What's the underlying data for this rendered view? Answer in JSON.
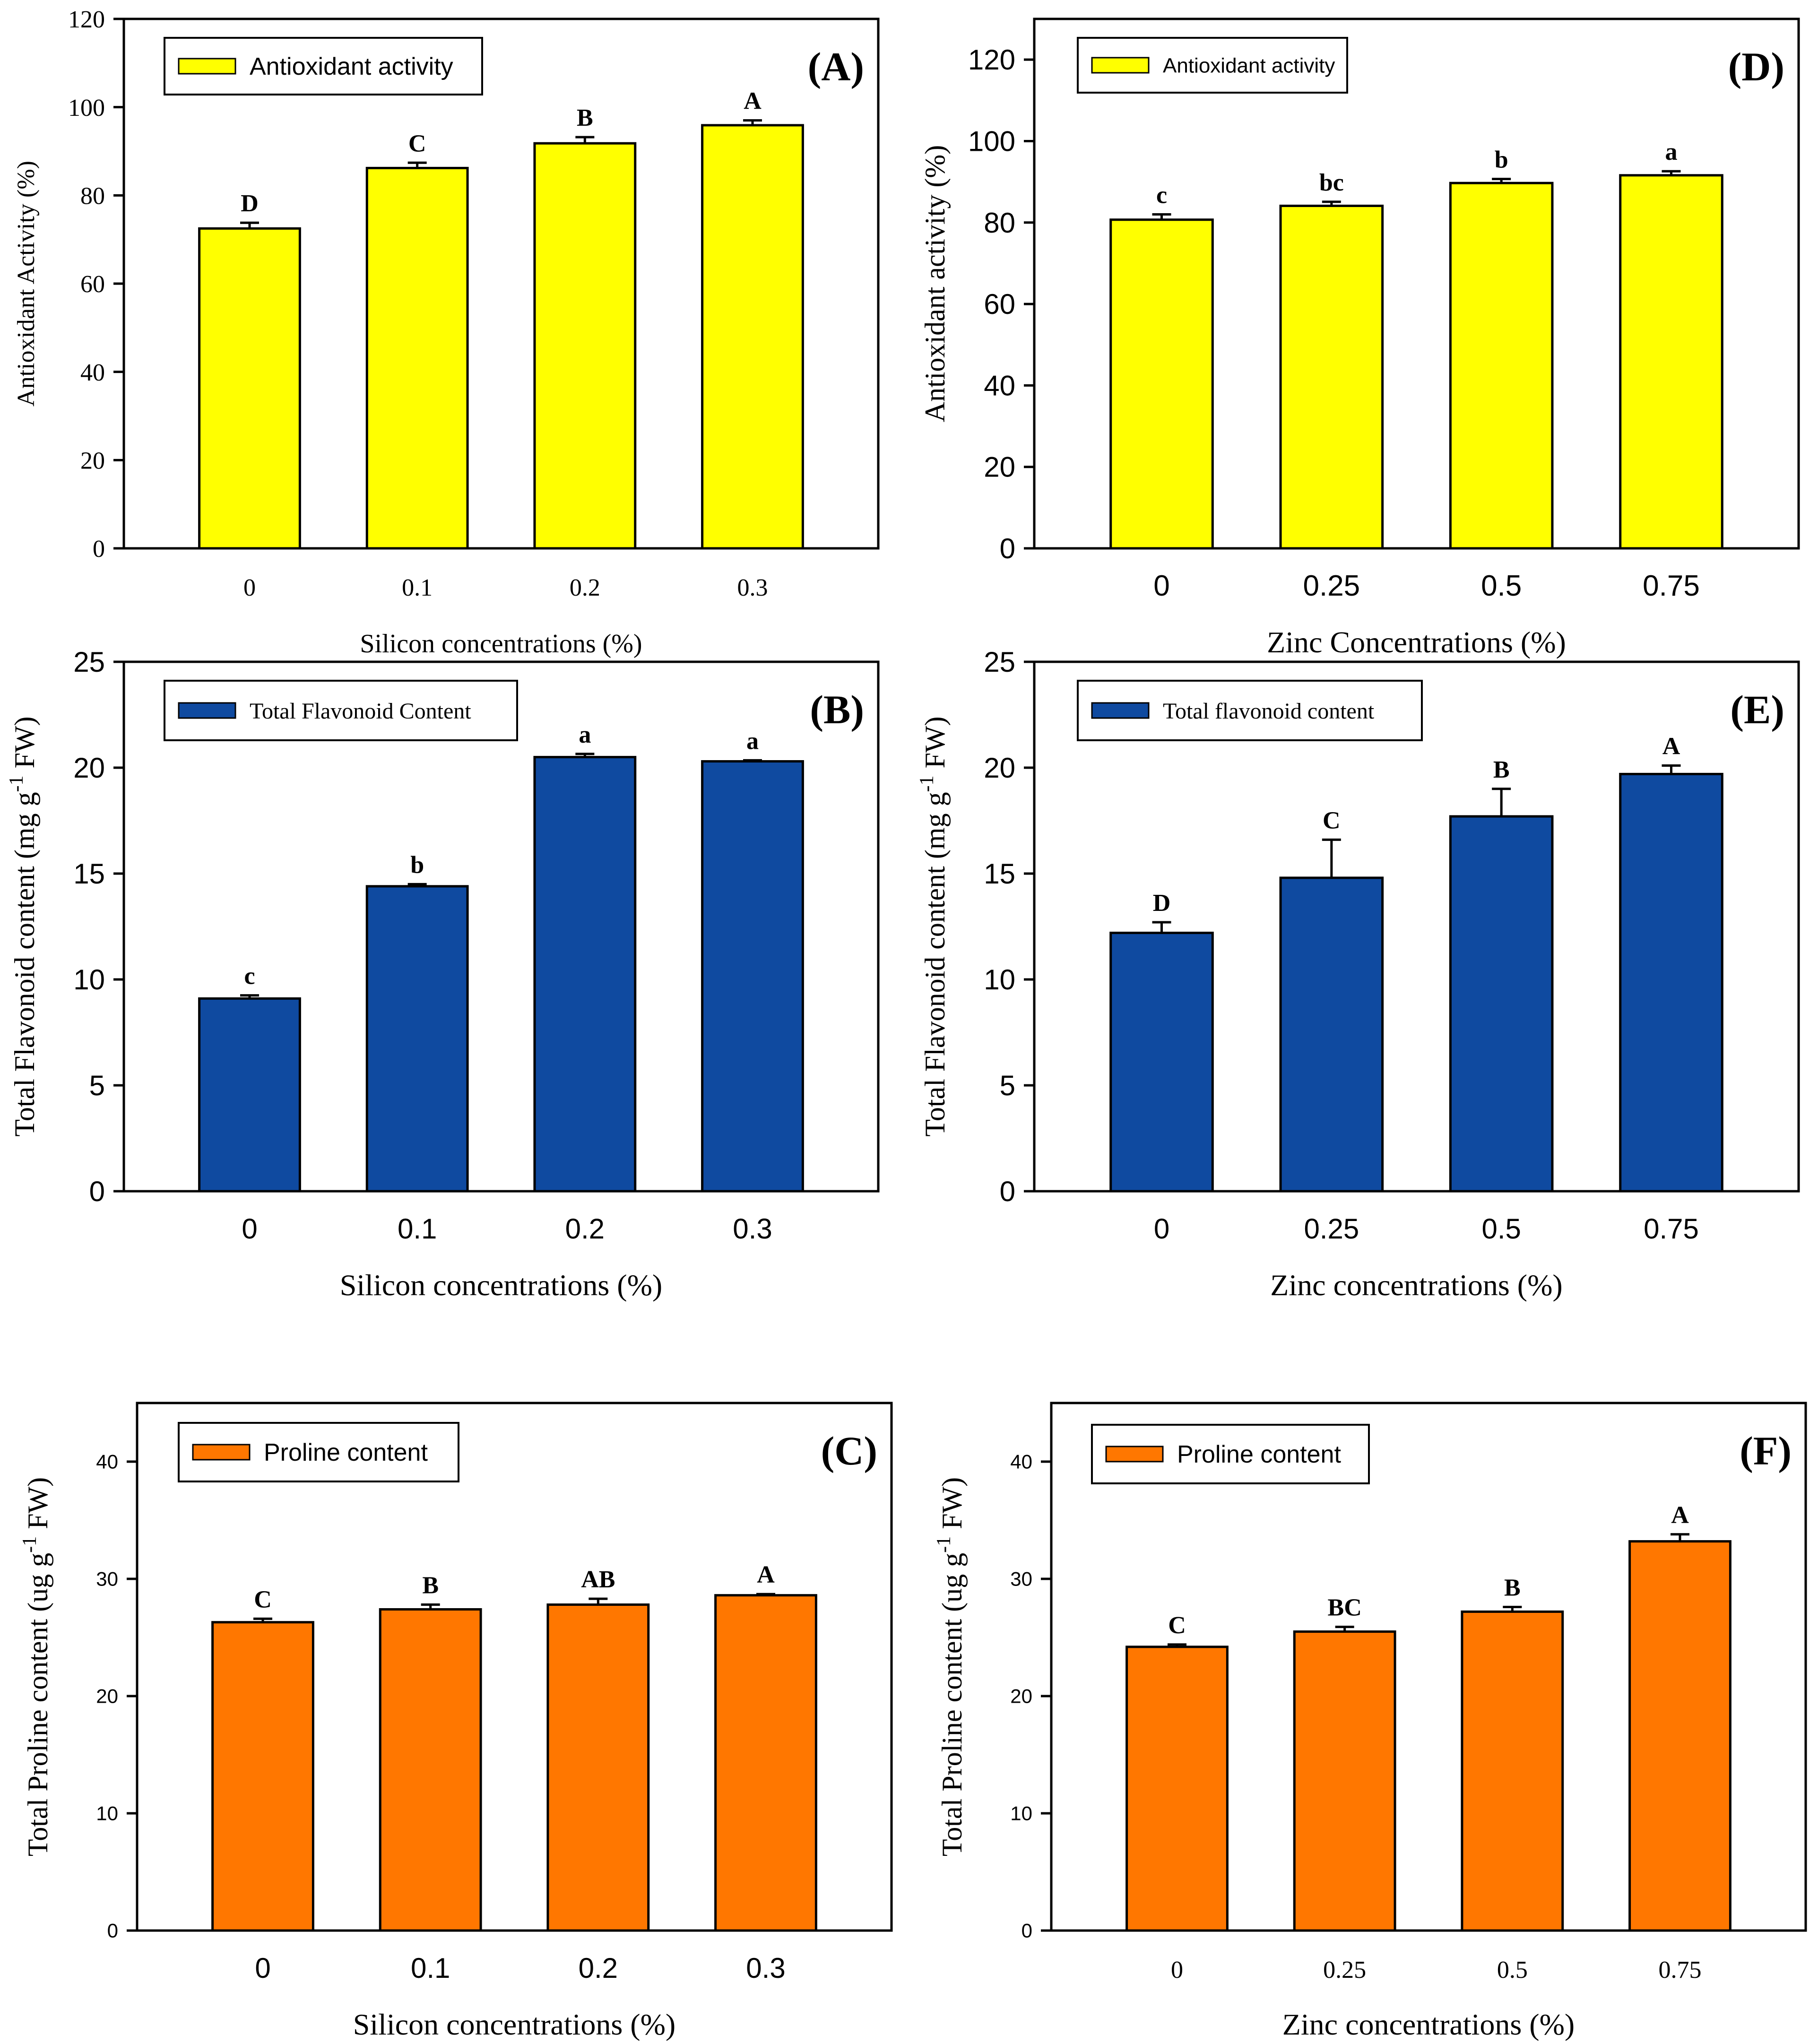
{
  "chart_data": [
    {
      "type": "bar",
      "panel_label": "(A)",
      "legend": "Antioxidant activity",
      "ylabel": "Antioxidant Activity (%)",
      "ylabel_sup": "",
      "ylabel_tail": "",
      "xlabel": "Silicon concentrations (%)",
      "categories": [
        "0",
        "0.1",
        "0.2",
        "0.3"
      ],
      "values": [
        72.5,
        86.2,
        91.8,
        95.9
      ],
      "errors": [
        1.3,
        1.2,
        1.4,
        1.1
      ],
      "letters": [
        "D",
        "C",
        "B",
        "A"
      ],
      "ylim": [
        0,
        120
      ],
      "yticks": [
        "0",
        "20",
        "40",
        "60",
        "80",
        "100",
        "120"
      ],
      "color": "#FFFF00"
    },
    {
      "type": "bar",
      "panel_label": "(D)",
      "legend": "Antioxidant activity",
      "ylabel": "Antioxidant activity (%)",
      "ylabel_sup": "",
      "ylabel_tail": "",
      "xlabel": "Zinc Concentrations (%)",
      "categories": [
        "0",
        "0.25",
        "0.5",
        "0.75"
      ],
      "values": [
        80.7,
        84.1,
        89.7,
        91.6
      ],
      "errors": [
        1.3,
        1.0,
        1.0,
        1.0
      ],
      "letters": [
        "c",
        "bc",
        "b",
        "a"
      ],
      "ylim": [
        0,
        130
      ],
      "yticks": [
        "0",
        "20",
        "40",
        "60",
        "80",
        "100",
        "120"
      ],
      "color": "#FFFF00"
    },
    {
      "type": "bar",
      "panel_label": "(B)",
      "legend": "Total Flavonoid Content",
      "ylabel": "Total Flavonoid content (mg g",
      "ylabel_sup": "-1",
      "ylabel_tail": " FW)",
      "xlabel": "Silicon concentrations (%)",
      "categories": [
        "0",
        "0.1",
        "0.2",
        "0.3"
      ],
      "values": [
        9.1,
        14.4,
        20.5,
        20.3
      ],
      "errors": [
        0.15,
        0.1,
        0.15,
        0.05
      ],
      "letters": [
        "c",
        "b",
        "a",
        "a"
      ],
      "ylim": [
        0,
        25
      ],
      "yticks": [
        "0",
        "5",
        "10",
        "15",
        "20",
        "25"
      ],
      "color": "#0F4AA0"
    },
    {
      "type": "bar",
      "panel_label": "(E)",
      "legend": "Total flavonoid content",
      "ylabel": "Total Flavonoid content (mg g",
      "ylabel_sup": "-1",
      "ylabel_tail": " FW)",
      "xlabel": "Zinc concentrations (%)",
      "categories": [
        "0",
        "0.25",
        "0.5",
        "0.75"
      ],
      "values": [
        12.2,
        14.8,
        17.7,
        19.7
      ],
      "errors": [
        0.5,
        1.8,
        1.3,
        0.4
      ],
      "letters": [
        "D",
        "C",
        "B",
        "A"
      ],
      "ylim": [
        0,
        25
      ],
      "yticks": [
        "0",
        "5",
        "10",
        "15",
        "20",
        "25"
      ],
      "color": "#0F4AA0"
    },
    {
      "type": "bar",
      "panel_label": "(C)",
      "legend": "Proline content",
      "ylabel": "Total Proline content (ug g",
      "ylabel_sup": "-1",
      "ylabel_tail": " FW)",
      "xlabel": "Silicon concentrations (%)",
      "categories": [
        "0",
        "0.1",
        "0.2",
        "0.3"
      ],
      "values": [
        26.3,
        27.4,
        27.8,
        28.6
      ],
      "errors": [
        0.3,
        0.4,
        0.5,
        0.1
      ],
      "letters": [
        "C",
        "B",
        "AB",
        "A"
      ],
      "ylim": [
        0,
        45
      ],
      "yticks": [
        "0",
        "10",
        "20",
        "30",
        "40"
      ],
      "color": "#FF7700"
    },
    {
      "type": "bar",
      "panel_label": "(F)",
      "legend": "Proline content",
      "ylabel": "Total Proline content (ug g",
      "ylabel_sup": "-1",
      "ylabel_tail": " FW)",
      "xlabel": "Zinc concentrations (%)",
      "categories": [
        "0",
        "0.25",
        "0.5",
        "0.75"
      ],
      "values": [
        24.2,
        25.5,
        27.2,
        33.2
      ],
      "errors": [
        0.2,
        0.4,
        0.4,
        0.6
      ],
      "letters": [
        "C",
        "BC",
        "B",
        "A"
      ],
      "ylim": [
        0,
        45
      ],
      "yticks": [
        "0",
        "10",
        "20",
        "30",
        "40"
      ],
      "color": "#FF7700"
    }
  ]
}
